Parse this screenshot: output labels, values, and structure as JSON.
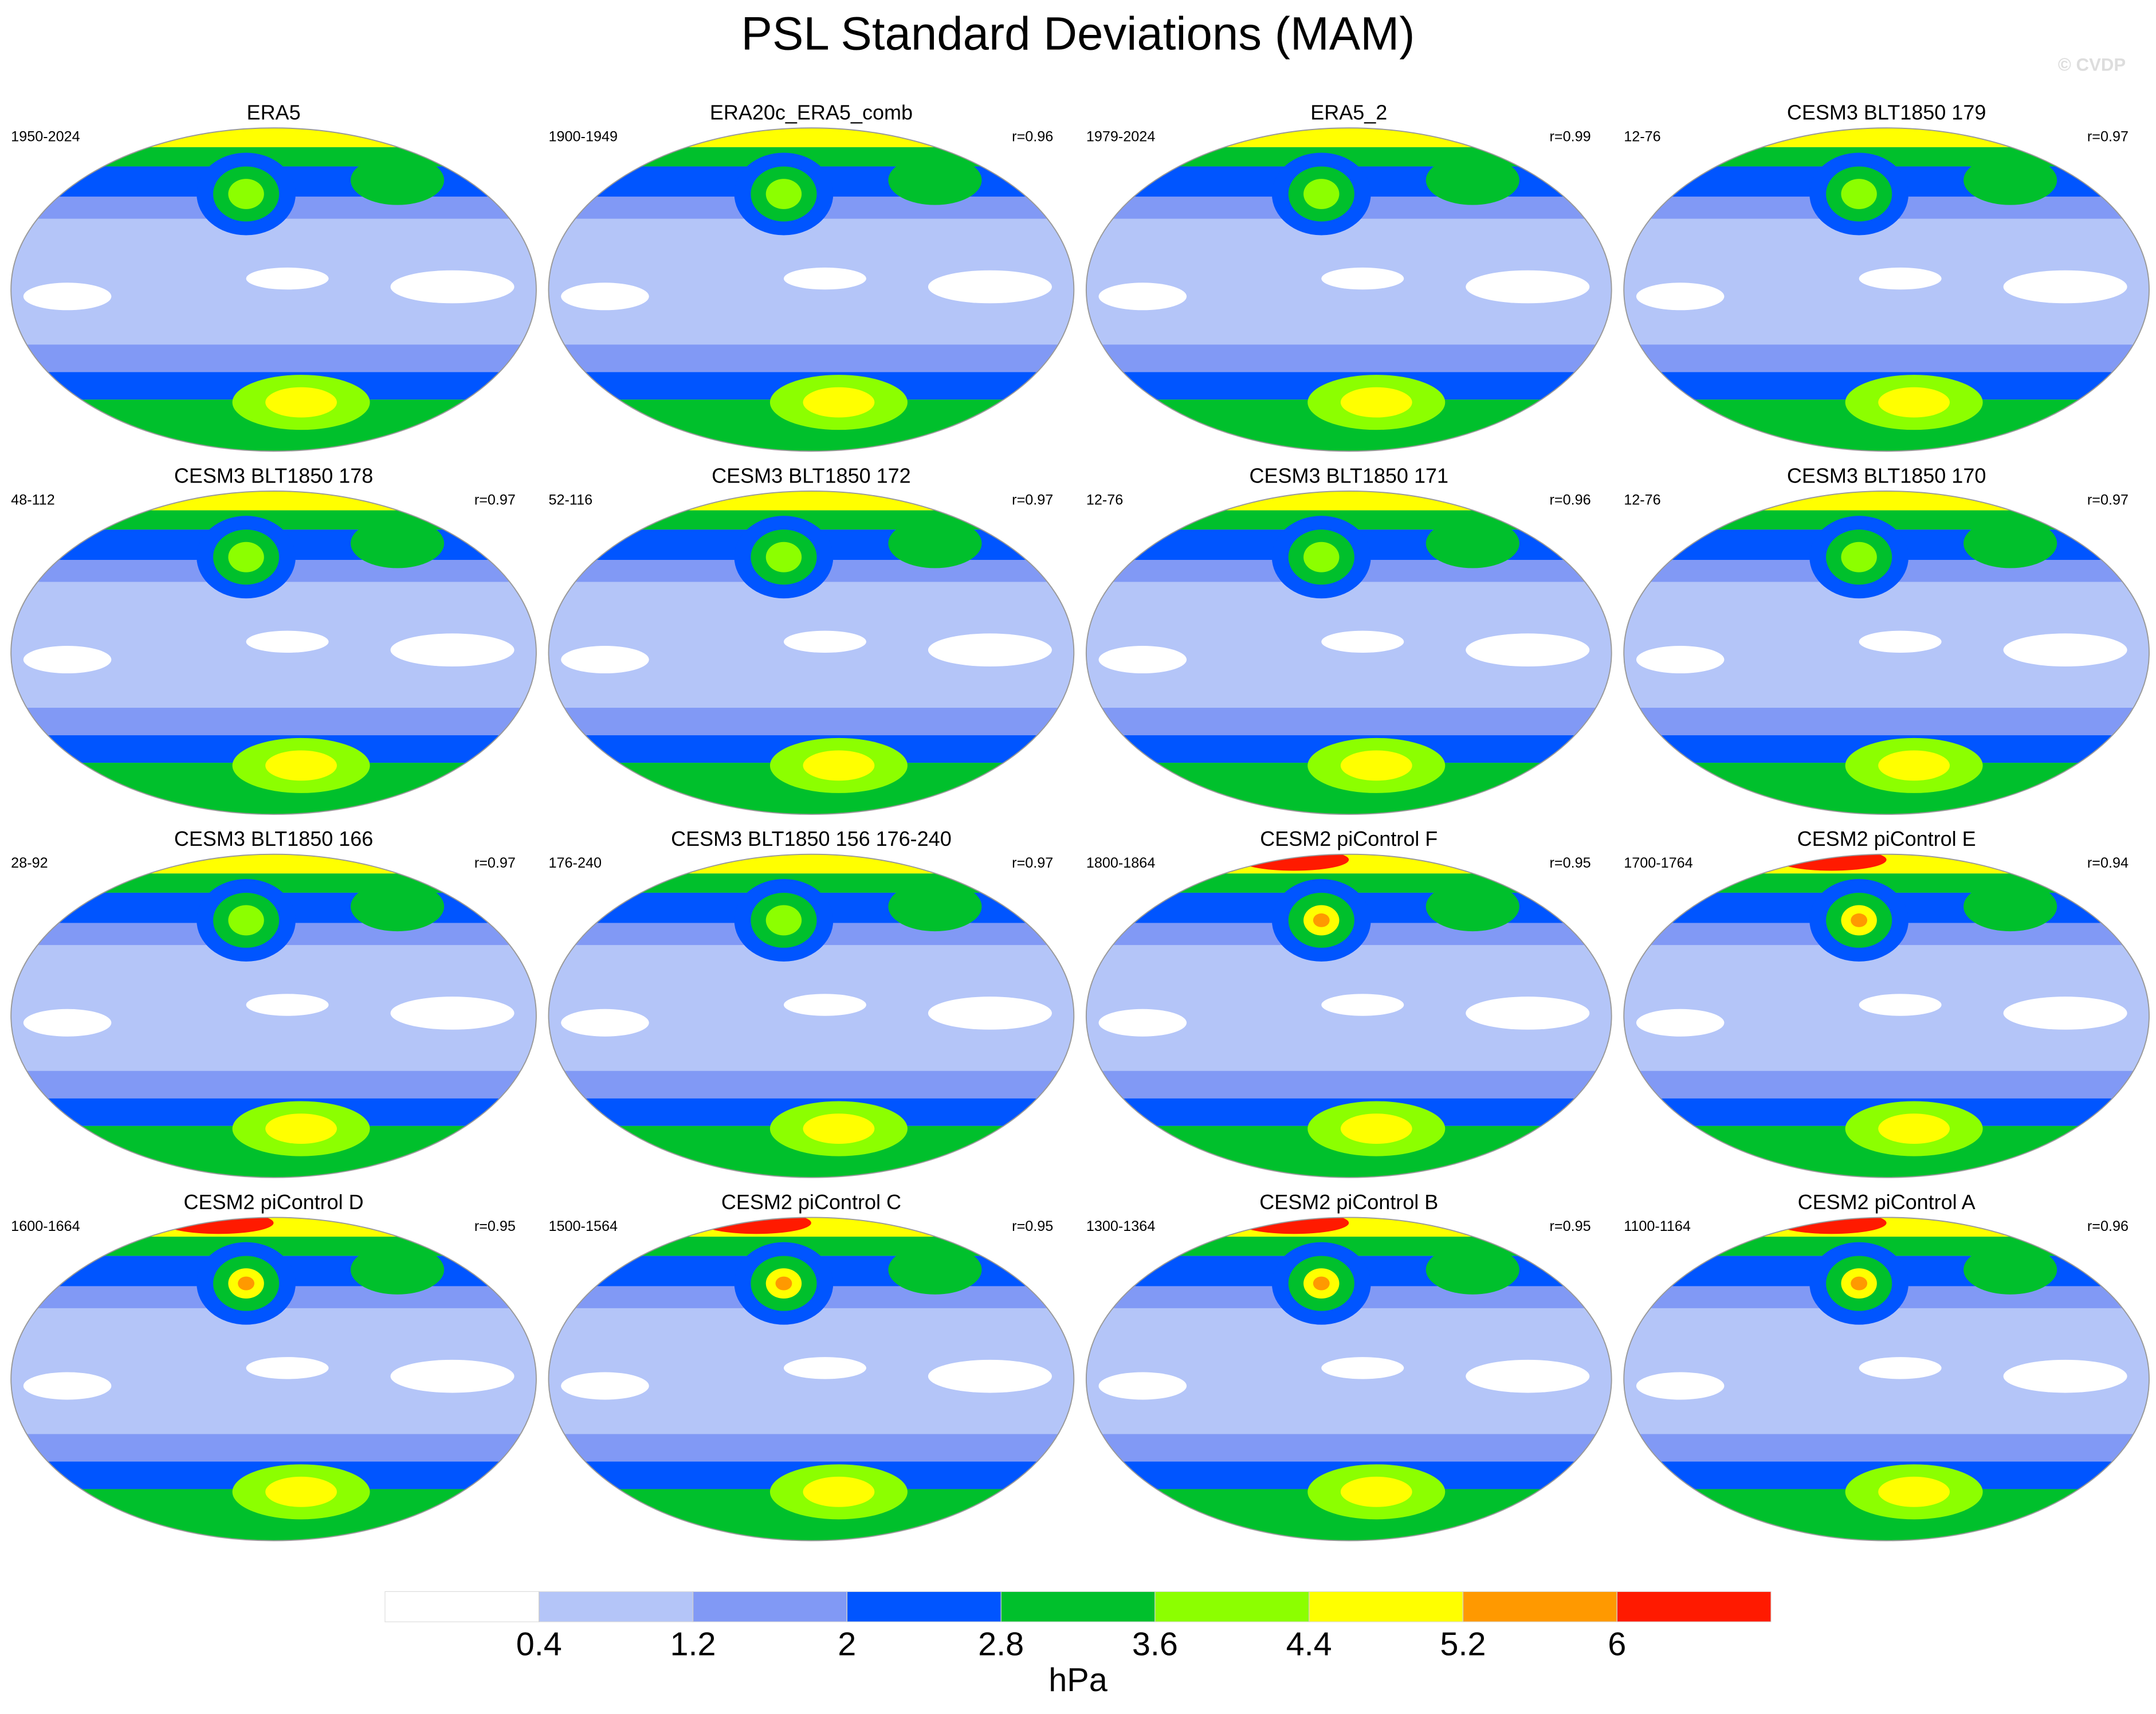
{
  "title": "PSL Standard Deviations (MAM)",
  "watermark": "© CVDP",
  "panels": [
    {
      "title": "ERA5",
      "period": "1950-2024"
    },
    {
      "title": "ERA20c_ERA5_comb",
      "period": "1900-1949",
      "r": "r=0.96"
    },
    {
      "title": "ERA5_2",
      "period": "1979-2024",
      "r": "r=0.99"
    },
    {
      "title": "CESM3 BLT1850 179",
      "period": "12-76",
      "r": "r=0.97"
    },
    {
      "title": "CESM3 BLT1850 178",
      "period": "48-112",
      "r": "r=0.97"
    },
    {
      "title": "CESM3 BLT1850 172",
      "period": "52-116",
      "r": "r=0.97"
    },
    {
      "title": "CESM3 BLT1850 171",
      "period": "12-76",
      "r": "r=0.96"
    },
    {
      "title": "CESM3 BLT1850 170",
      "period": "12-76",
      "r": "r=0.97"
    },
    {
      "title": "CESM3 BLT1850 166",
      "period": "28-92",
      "r": "r=0.97"
    },
    {
      "title": "CESM3 BLT1850 156 176-240",
      "period": "176-240",
      "r": "r=0.97"
    },
    {
      "title": "CESM2 piControl F",
      "period": "1800-1864",
      "r": "r=0.95"
    },
    {
      "title": "CESM2 piControl E",
      "period": "1700-1764",
      "r": "r=0.94"
    },
    {
      "title": "CESM2 piControl D",
      "period": "1600-1664",
      "r": "r=0.95"
    },
    {
      "title": "CESM2 piControl C",
      "period": "1500-1564",
      "r": "r=0.95"
    },
    {
      "title": "CESM2 piControl B",
      "period": "1300-1364",
      "r": "r=0.95"
    },
    {
      "title": "CESM2 piControl A",
      "period": "1100-1164",
      "r": "r=0.96"
    }
  ],
  "colorbar": {
    "colors": [
      "#ffffff",
      "#b4c5f8",
      "#8199f5",
      "#0055ff",
      "#00c02c",
      "#8cff00",
      "#ffff00",
      "#ff9900",
      "#ff1a00"
    ],
    "ticks": [
      0.4,
      1.2,
      2,
      2.8,
      3.6,
      4.4,
      5.2,
      6
    ],
    "label": "hPa"
  }
}
